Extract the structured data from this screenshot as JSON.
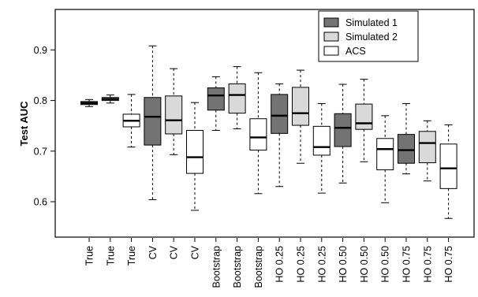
{
  "chart_data": {
    "type": "boxplot",
    "ylabel": "Test AUC",
    "ylim": [
      0.53,
      0.98
    ],
    "y_ticks": [
      "0.6",
      "0.7",
      "0.8",
      "0.9"
    ],
    "y_tick_values": [
      0.6,
      0.7,
      0.8,
      0.9
    ],
    "categories": [
      "True",
      "True",
      "True",
      "CV",
      "CV",
      "CV",
      "Bootstrap",
      "Bootstrap",
      "Bootstrap",
      "HO 0.25",
      "HO 0.25",
      "HO 0.25",
      "HO 0.50",
      "HO 0.50",
      "HO 0.50",
      "HO 0.75",
      "HO 0.75",
      "HO 0.75"
    ],
    "series": [
      {
        "name": "Simulated 1",
        "color": "#737373"
      },
      {
        "name": "Simulated 2",
        "color": "#d9d9d9"
      },
      {
        "name": "ACS",
        "color": "#ffffff"
      }
    ],
    "legend_position": "top-right",
    "boxes": [
      {
        "series": 0,
        "min": 0.788,
        "q1": 0.792,
        "median": 0.795,
        "q3": 0.798,
        "max": 0.802
      },
      {
        "series": 1,
        "min": 0.795,
        "q1": 0.8,
        "median": 0.803,
        "q3": 0.806,
        "max": 0.811
      },
      {
        "series": 2,
        "min": 0.708,
        "q1": 0.748,
        "median": 0.76,
        "q3": 0.773,
        "max": 0.812
      },
      {
        "series": 0,
        "min": 0.604,
        "q1": 0.712,
        "median": 0.768,
        "q3": 0.806,
        "max": 0.908
      },
      {
        "series": 1,
        "min": 0.693,
        "q1": 0.734,
        "median": 0.761,
        "q3": 0.809,
        "max": 0.863
      },
      {
        "series": 2,
        "min": 0.583,
        "q1": 0.656,
        "median": 0.688,
        "q3": 0.741,
        "max": 0.796
      },
      {
        "series": 0,
        "min": 0.741,
        "q1": 0.781,
        "median": 0.81,
        "q3": 0.825,
        "max": 0.847
      },
      {
        "series": 1,
        "min": 0.744,
        "q1": 0.775,
        "median": 0.811,
        "q3": 0.833,
        "max": 0.867
      },
      {
        "series": 2,
        "min": 0.616,
        "q1": 0.702,
        "median": 0.727,
        "q3": 0.764,
        "max": 0.855
      },
      {
        "series": 0,
        "min": 0.63,
        "q1": 0.735,
        "median": 0.77,
        "q3": 0.812,
        "max": 0.833
      },
      {
        "series": 1,
        "min": 0.676,
        "q1": 0.751,
        "median": 0.775,
        "q3": 0.826,
        "max": 0.86
      },
      {
        "series": 2,
        "min": 0.617,
        "q1": 0.692,
        "median": 0.708,
        "q3": 0.749,
        "max": 0.794
      },
      {
        "series": 0,
        "min": 0.637,
        "q1": 0.709,
        "median": 0.746,
        "q3": 0.774,
        "max": 0.832
      },
      {
        "series": 1,
        "min": 0.679,
        "q1": 0.743,
        "median": 0.755,
        "q3": 0.793,
        "max": 0.842
      },
      {
        "series": 2,
        "min": 0.598,
        "q1": 0.663,
        "median": 0.704,
        "q3": 0.725,
        "max": 0.77
      },
      {
        "series": 0,
        "min": 0.655,
        "q1": 0.676,
        "median": 0.702,
        "q3": 0.733,
        "max": 0.794
      },
      {
        "series": 1,
        "min": 0.641,
        "q1": 0.677,
        "median": 0.716,
        "q3": 0.739,
        "max": 0.76
      },
      {
        "series": 2,
        "min": 0.567,
        "q1": 0.626,
        "median": 0.666,
        "q3": 0.714,
        "max": 0.752
      }
    ]
  }
}
